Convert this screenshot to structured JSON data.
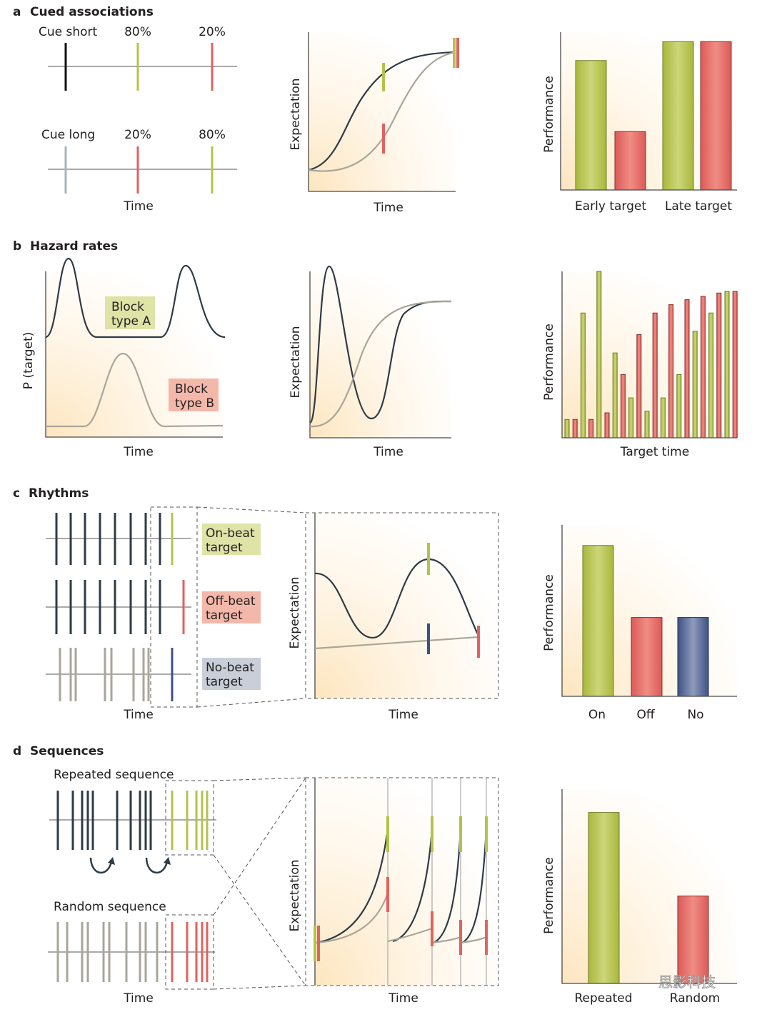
{
  "colors": {
    "green": "#b5c24a",
    "red": "#e2625e",
    "navy": "#3e5182",
    "dark": "#2f3b45",
    "gray": "#a8a69a",
    "boxA": "#dfe3a6",
    "boxB": "#f4b8ab",
    "boxNo": "#c9ced8"
  },
  "panel_a": {
    "letter": "a",
    "title": "Cued associations",
    "cue_short": "Cue short",
    "cue_long": "Cue long",
    "short_p1": "80%",
    "short_p2": "20%",
    "long_p1": "20%",
    "long_p2": "80%",
    "time": "Time",
    "y_expect": "Expectation",
    "time2": "Time",
    "y_perf": "Performance",
    "bar_labels": [
      "Early target",
      "Late target"
    ],
    "bars": [
      {
        "color": "green",
        "value": 0.82
      },
      {
        "color": "red",
        "value": 0.37
      },
      {
        "color": "green",
        "value": 0.94
      },
      {
        "color": "red",
        "value": 0.94
      }
    ]
  },
  "panel_b": {
    "letter": "b",
    "title": "Hazard rates",
    "y_p": "P (target)",
    "block_a": [
      "Block",
      "type A"
    ],
    "block_b": [
      "Block",
      "type B"
    ],
    "time": "Time",
    "y_expect": "Expectation",
    "time2": "Time",
    "y_perf": "Performance",
    "x_perf": "Target time",
    "bars": [
      {
        "c": "green",
        "v": 0.11
      },
      {
        "c": "red",
        "v": 0.11
      },
      {
        "c": "green",
        "v": 0.75
      },
      {
        "c": "red",
        "v": 0.11
      },
      {
        "c": "green",
        "v": 1.0
      },
      {
        "c": "red",
        "v": 0.15
      },
      {
        "c": "green",
        "v": 0.51
      },
      {
        "c": "red",
        "v": 0.38
      },
      {
        "c": "green",
        "v": 0.24
      },
      {
        "c": "red",
        "v": 0.62
      },
      {
        "c": "green",
        "v": 0.16
      },
      {
        "c": "red",
        "v": 0.75
      },
      {
        "c": "green",
        "v": 0.24
      },
      {
        "c": "red",
        "v": 0.8
      },
      {
        "c": "green",
        "v": 0.38
      },
      {
        "c": "red",
        "v": 0.83
      },
      {
        "c": "green",
        "v": 0.64
      },
      {
        "c": "red",
        "v": 0.85
      },
      {
        "c": "green",
        "v": 0.75
      },
      {
        "c": "red",
        "v": 0.87
      },
      {
        "c": "green",
        "v": 0.88
      },
      {
        "c": "red",
        "v": 0.88
      }
    ]
  },
  "panel_c": {
    "letter": "c",
    "title": "Rhythms",
    "on": [
      "On-beat",
      "target"
    ],
    "off": [
      "Off-beat",
      "target"
    ],
    "no": [
      "No-beat",
      "target"
    ],
    "time": "Time",
    "y_expect": "Expectation",
    "time2": "Time",
    "y_perf": "Performance",
    "bar_labels": [
      "On",
      "Off",
      "No"
    ],
    "bars": [
      {
        "color": "green",
        "value": 0.88
      },
      {
        "color": "red",
        "value": 0.46
      },
      {
        "color": "navy",
        "value": 0.46
      }
    ]
  },
  "panel_d": {
    "letter": "d",
    "title": "Sequences",
    "repeated": "Repeated sequence",
    "random": "Random sequence",
    "time": "Time",
    "y_expect": "Expectation",
    "time2": "Time",
    "y_perf": "Performance",
    "bar_labels": [
      "Repeated",
      "Random"
    ],
    "bars": [
      {
        "color": "green",
        "value": 0.88
      },
      {
        "color": "red",
        "value": 0.45
      }
    ]
  },
  "watermark": "思影科技"
}
